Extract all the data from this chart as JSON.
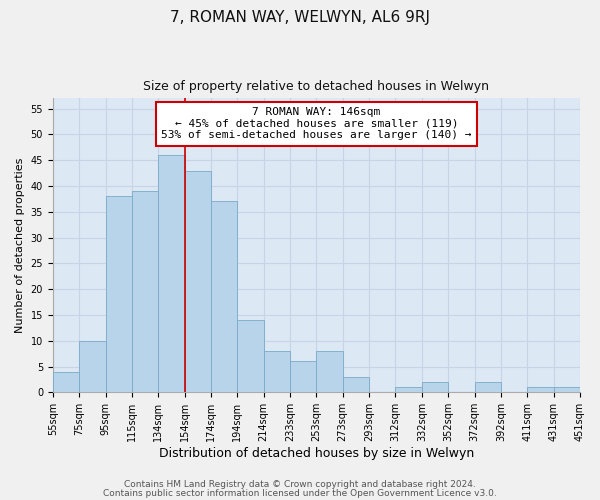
{
  "title": "7, ROMAN WAY, WELWYN, AL6 9RJ",
  "subtitle": "Size of property relative to detached houses in Welwyn",
  "xlabel": "Distribution of detached houses by size in Welwyn",
  "ylabel": "Number of detached properties",
  "all_bin_values": [
    4,
    10,
    38,
    39,
    46,
    43,
    37,
    14,
    8,
    6,
    8,
    3,
    0,
    1,
    2,
    0,
    2,
    0,
    1,
    1
  ],
  "bar_labels": [
    "55sqm",
    "75sqm",
    "95sqm",
    "115sqm",
    "134sqm",
    "154sqm",
    "174sqm",
    "194sqm",
    "214sqm",
    "233sqm",
    "253sqm",
    "273sqm",
    "293sqm",
    "312sqm",
    "332sqm",
    "352sqm",
    "372sqm",
    "392sqm",
    "411sqm",
    "431sqm",
    "451sqm"
  ],
  "bar_color": "#b8d4ea",
  "bar_edge_color": "#7aaac8",
  "red_line_x": 5,
  "annotation_text_line1": "7 ROMAN WAY: 146sqm",
  "annotation_text_line2": "← 45% of detached houses are smaller (119)",
  "annotation_text_line3": "53% of semi-detached houses are larger (140) →",
  "annotation_box_color": "#ffffff",
  "annotation_box_edge_color": "#cc0000",
  "ylim": [
    0,
    57
  ],
  "yticks": [
    0,
    5,
    10,
    15,
    20,
    25,
    30,
    35,
    40,
    45,
    50,
    55
  ],
  "grid_color": "#c8d4e4",
  "background_color": "#dce8f4",
  "fig_bg_color": "#f0f0f0",
  "footer_line1": "Contains HM Land Registry data © Crown copyright and database right 2024.",
  "footer_line2": "Contains public sector information licensed under the Open Government Licence v3.0.",
  "title_fontsize": 11,
  "subtitle_fontsize": 9,
  "xlabel_fontsize": 9,
  "ylabel_fontsize": 8,
  "tick_fontsize": 7,
  "annotation_fontsize": 8,
  "footer_fontsize": 6.5
}
